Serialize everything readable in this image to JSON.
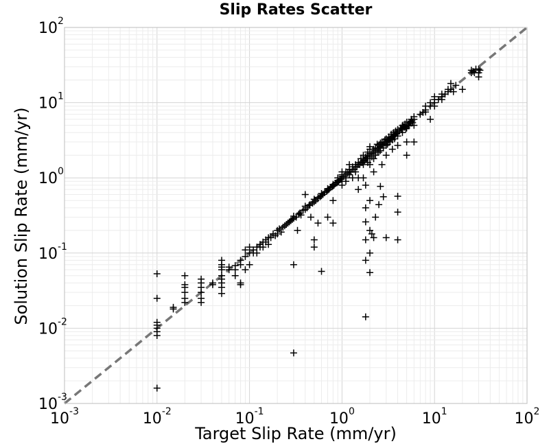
{
  "chart_data": {
    "type": "scatter",
    "title": "Slip Rates Scatter",
    "xlabel": "Target Slip Rate (mm/yr)",
    "ylabel": "Solution Slip Rate (mm/yr)",
    "xscale": "log",
    "yscale": "log",
    "xlim": [
      0.001,
      100
    ],
    "ylim": [
      0.001,
      100
    ],
    "xticks": [
      {
        "base": "10",
        "exp": "-3"
      },
      {
        "base": "10",
        "exp": "-2"
      },
      {
        "base": "10",
        "exp": "-1"
      },
      {
        "base": "10",
        "exp": "0"
      },
      {
        "base": "10",
        "exp": "1"
      },
      {
        "base": "10",
        "exp": "2"
      }
    ],
    "yticks": [
      {
        "base": "10",
        "exp": "-3"
      },
      {
        "base": "10",
        "exp": "-2"
      },
      {
        "base": "10",
        "exp": "-1"
      },
      {
        "base": "10",
        "exp": "0"
      },
      {
        "base": "10",
        "exp": "1"
      },
      {
        "base": "10",
        "exp": "2"
      }
    ],
    "grid": true,
    "marker": "+",
    "marker_color": "#000000",
    "reference_line": {
      "style": "dashed",
      "color": "#777777",
      "x": [
        0.001,
        100
      ],
      "y": [
        0.001,
        100
      ]
    },
    "series": [
      {
        "points": [
          [
            0.01,
            0.0016
          ],
          [
            0.01,
            0.008
          ],
          [
            0.01,
            0.009
          ],
          [
            0.01,
            0.01
          ],
          [
            0.01,
            0.011
          ],
          [
            0.01,
            0.012
          ],
          [
            0.01,
            0.025
          ],
          [
            0.01,
            0.053
          ],
          [
            0.015,
            0.018
          ],
          [
            0.015,
            0.019
          ],
          [
            0.02,
            0.022
          ],
          [
            0.02,
            0.025
          ],
          [
            0.02,
            0.03
          ],
          [
            0.02,
            0.035
          ],
          [
            0.02,
            0.038
          ],
          [
            0.02,
            0.05
          ],
          [
            0.03,
            0.022
          ],
          [
            0.03,
            0.025
          ],
          [
            0.03,
            0.03
          ],
          [
            0.03,
            0.035
          ],
          [
            0.03,
            0.04
          ],
          [
            0.03,
            0.045
          ],
          [
            0.04,
            0.038
          ],
          [
            0.04,
            0.04
          ],
          [
            0.05,
            0.029
          ],
          [
            0.05,
            0.035
          ],
          [
            0.05,
            0.04
          ],
          [
            0.05,
            0.045
          ],
          [
            0.05,
            0.05
          ],
          [
            0.05,
            0.06
          ],
          [
            0.05,
            0.065
          ],
          [
            0.05,
            0.07
          ],
          [
            0.05,
            0.08
          ],
          [
            0.06,
            0.06
          ],
          [
            0.06,
            0.065
          ],
          [
            0.07,
            0.05
          ],
          [
            0.07,
            0.06
          ],
          [
            0.07,
            0.068
          ],
          [
            0.08,
            0.038
          ],
          [
            0.08,
            0.04
          ],
          [
            0.08,
            0.07
          ],
          [
            0.08,
            0.08
          ],
          [
            0.09,
            0.06
          ],
          [
            0.09,
            0.09
          ],
          [
            0.09,
            0.11
          ],
          [
            0.1,
            0.07
          ],
          [
            0.1,
            0.1
          ],
          [
            0.1,
            0.12
          ],
          [
            0.11,
            0.1
          ],
          [
            0.11,
            0.11
          ],
          [
            0.12,
            0.1
          ],
          [
            0.12,
            0.12
          ],
          [
            0.13,
            0.12
          ],
          [
            0.13,
            0.13
          ],
          [
            0.14,
            0.12
          ],
          [
            0.14,
            0.14
          ],
          [
            0.15,
            0.14
          ],
          [
            0.15,
            0.15
          ],
          [
            0.16,
            0.13
          ],
          [
            0.16,
            0.16
          ],
          [
            0.17,
            0.16
          ],
          [
            0.18,
            0.18
          ],
          [
            0.19,
            0.17
          ],
          [
            0.2,
            0.2
          ],
          [
            0.2,
            0.18
          ],
          [
            0.21,
            0.21
          ],
          [
            0.22,
            0.19
          ],
          [
            0.23,
            0.22
          ],
          [
            0.24,
            0.23
          ],
          [
            0.25,
            0.24
          ],
          [
            0.26,
            0.25
          ],
          [
            0.27,
            0.26
          ],
          [
            0.28,
            0.27
          ],
          [
            0.29,
            0.28
          ],
          [
            0.3,
            0.29
          ],
          [
            0.3,
            0.31
          ],
          [
            0.3,
            0.07
          ],
          [
            0.3,
            0.0047
          ],
          [
            0.32,
            0.3
          ],
          [
            0.33,
            0.2
          ],
          [
            0.34,
            0.33
          ],
          [
            0.35,
            0.34
          ],
          [
            0.36,
            0.32
          ],
          [
            0.38,
            0.37
          ],
          [
            0.4,
            0.38
          ],
          [
            0.4,
            0.42
          ],
          [
            0.4,
            0.6
          ],
          [
            0.42,
            0.4
          ],
          [
            0.44,
            0.43
          ],
          [
            0.45,
            0.44
          ],
          [
            0.46,
            0.3
          ],
          [
            0.48,
            0.46
          ],
          [
            0.5,
            0.48
          ],
          [
            0.5,
            0.52
          ],
          [
            0.5,
            0.12
          ],
          [
            0.5,
            0.15
          ],
          [
            0.52,
            0.5
          ],
          [
            0.55,
            0.53
          ],
          [
            0.55,
            0.55
          ],
          [
            0.55,
            0.25
          ],
          [
            0.58,
            0.56
          ],
          [
            0.6,
            0.58
          ],
          [
            0.6,
            0.62
          ],
          [
            0.6,
            0.057
          ],
          [
            0.62,
            0.6
          ],
          [
            0.65,
            0.64
          ],
          [
            0.68,
            0.66
          ],
          [
            0.7,
            0.68
          ],
          [
            0.7,
            0.72
          ],
          [
            0.7,
            0.3
          ],
          [
            0.72,
            0.7
          ],
          [
            0.75,
            0.74
          ],
          [
            0.78,
            0.76
          ],
          [
            0.8,
            0.78
          ],
          [
            0.8,
            0.82
          ],
          [
            0.8,
            0.5
          ],
          [
            0.8,
            0.25
          ],
          [
            0.82,
            0.8
          ],
          [
            0.85,
            0.85
          ],
          [
            0.88,
            0.86
          ],
          [
            0.9,
            0.88
          ],
          [
            0.9,
            0.92
          ],
          [
            0.9,
            1.0
          ],
          [
            0.92,
            0.9
          ],
          [
            0.95,
            0.95
          ],
          [
            0.98,
            0.96
          ],
          [
            1.0,
            1.0
          ],
          [
            1.0,
            1.05
          ],
          [
            1.0,
            1.1
          ],
          [
            1.0,
            0.8
          ],
          [
            1.0,
            0.9
          ],
          [
            1.0,
            1.2
          ],
          [
            1.05,
            1.05
          ],
          [
            1.1,
            1.1
          ],
          [
            1.1,
            1.0
          ],
          [
            1.1,
            1.2
          ],
          [
            1.1,
            0.9
          ],
          [
            1.15,
            1.15
          ],
          [
            1.2,
            1.2
          ],
          [
            1.2,
            1.1
          ],
          [
            1.2,
            1.3
          ],
          [
            1.2,
            1.5
          ],
          [
            1.25,
            1.2
          ],
          [
            1.3,
            1.3
          ],
          [
            1.3,
            1.4
          ],
          [
            1.3,
            1.0
          ],
          [
            1.35,
            1.3
          ],
          [
            1.4,
            1.4
          ],
          [
            1.4,
            1.5
          ],
          [
            1.4,
            1.2
          ],
          [
            1.45,
            1.4
          ],
          [
            1.5,
            1.5
          ],
          [
            1.5,
            1.6
          ],
          [
            1.5,
            1.0
          ],
          [
            1.5,
            0.7
          ],
          [
            1.55,
            1.5
          ],
          [
            1.6,
            1.6
          ],
          [
            1.6,
            1.8
          ],
          [
            1.65,
            1.6
          ],
          [
            1.7,
            1.7
          ],
          [
            1.7,
            1.5
          ],
          [
            1.7,
            2.0
          ],
          [
            1.7,
            1.0
          ],
          [
            1.75,
            1.7
          ],
          [
            1.8,
            1.8
          ],
          [
            1.8,
            1.9
          ],
          [
            1.8,
            0.8
          ],
          [
            1.8,
            0.4
          ],
          [
            1.8,
            0.26
          ],
          [
            1.8,
            0.15
          ],
          [
            1.8,
            0.08
          ],
          [
            1.8,
            0.0142
          ],
          [
            1.85,
            1.8
          ],
          [
            1.9,
            1.9
          ],
          [
            1.9,
            2.0
          ],
          [
            1.9,
            1.6
          ],
          [
            1.9,
            2.2
          ],
          [
            2.0,
            2.0
          ],
          [
            2.0,
            2.1
          ],
          [
            2.0,
            1.8
          ],
          [
            2.0,
            2.4
          ],
          [
            2.0,
            1.5
          ],
          [
            2.0,
            2.6
          ],
          [
            2.0,
            0.5
          ],
          [
            2.0,
            0.2
          ],
          [
            2.0,
            0.1
          ],
          [
            2.0,
            0.055
          ],
          [
            2.1,
            2.1
          ],
          [
            2.1,
            1.9
          ],
          [
            2.1,
            0.18
          ],
          [
            2.2,
            2.2
          ],
          [
            2.2,
            2.4
          ],
          [
            2.2,
            1.8
          ],
          [
            2.2,
            1.2
          ],
          [
            2.2,
            0.16
          ],
          [
            2.3,
            2.3
          ],
          [
            2.3,
            2.5
          ],
          [
            2.3,
            2.0
          ],
          [
            2.3,
            0.3
          ],
          [
            2.4,
            2.4
          ],
          [
            2.4,
            2.2
          ],
          [
            2.4,
            2.8
          ],
          [
            2.5,
            2.5
          ],
          [
            2.5,
            2.7
          ],
          [
            2.5,
            2.2
          ],
          [
            2.5,
            0.44
          ],
          [
            2.6,
            2.6
          ],
          [
            2.6,
            2.9
          ],
          [
            2.6,
            2.3
          ],
          [
            2.6,
            0.77
          ],
          [
            2.7,
            2.7
          ],
          [
            2.7,
            3.0
          ],
          [
            2.7,
            1.5
          ],
          [
            2.8,
            2.8
          ],
          [
            2.8,
            2.5
          ],
          [
            2.8,
            0.56
          ],
          [
            2.9,
            2.9
          ],
          [
            2.9,
            3.2
          ],
          [
            3.0,
            3.0
          ],
          [
            3.0,
            3.3
          ],
          [
            3.0,
            2.7
          ],
          [
            3.0,
            2.0
          ],
          [
            3.0,
            0.16
          ],
          [
            3.1,
            3.1
          ],
          [
            3.1,
            2.8
          ],
          [
            3.2,
            3.2
          ],
          [
            3.2,
            3.5
          ],
          [
            3.3,
            3.3
          ],
          [
            3.3,
            3.0
          ],
          [
            3.4,
            3.4
          ],
          [
            3.4,
            3.8
          ],
          [
            3.5,
            3.5
          ],
          [
            3.5,
            3.2
          ],
          [
            3.5,
            2.4
          ],
          [
            3.6,
            3.6
          ],
          [
            3.6,
            4.0
          ],
          [
            3.7,
            3.7
          ],
          [
            3.7,
            3.3
          ],
          [
            3.8,
            3.8
          ],
          [
            3.8,
            4.2
          ],
          [
            3.9,
            3.9
          ],
          [
            4.0,
            4.0
          ],
          [
            4.0,
            4.4
          ],
          [
            4.0,
            3.6
          ],
          [
            4.0,
            2.7
          ],
          [
            4.0,
            0.57
          ],
          [
            4.0,
            0.35
          ],
          [
            4.0,
            0.15
          ],
          [
            4.2,
            4.2
          ],
          [
            4.3,
            4.6
          ],
          [
            4.4,
            4.4
          ],
          [
            4.5,
            4.5
          ],
          [
            4.5,
            5.0
          ],
          [
            4.5,
            4.0
          ],
          [
            4.6,
            4.8
          ],
          [
            4.7,
            4.7
          ],
          [
            4.8,
            4.8
          ],
          [
            4.8,
            5.2
          ],
          [
            4.9,
            4.5
          ],
          [
            5.0,
            5.0
          ],
          [
            5.0,
            5.5
          ],
          [
            5.0,
            4.6
          ],
          [
            5.0,
            3.0
          ],
          [
            5.0,
            2.0
          ],
          [
            5.2,
            5.2
          ],
          [
            5.3,
            4.9
          ],
          [
            5.4,
            5.4
          ],
          [
            5.5,
            5.5
          ],
          [
            5.6,
            6.0
          ],
          [
            5.7,
            5.7
          ],
          [
            5.8,
            5.4
          ],
          [
            6.0,
            6.0
          ],
          [
            6.0,
            6.5
          ],
          [
            6.0,
            5.0
          ],
          [
            6.0,
            3.0
          ],
          [
            7.0,
            7.0
          ],
          [
            7.5,
            7.4
          ],
          [
            8.0,
            8.0
          ],
          [
            8.0,
            9.0
          ],
          [
            8.0,
            7.5
          ],
          [
            9.0,
            9.0
          ],
          [
            9.0,
            10.0
          ],
          [
            9.0,
            6.0
          ],
          [
            10.0,
            10.0
          ],
          [
            10.0,
            11.0
          ],
          [
            10.0,
            9.0
          ],
          [
            10.0,
            12.0
          ],
          [
            11.0,
            11.0
          ],
          [
            12.0,
            12.0
          ],
          [
            12.0,
            13.0
          ],
          [
            12.0,
            11.0
          ],
          [
            13.0,
            13.0
          ],
          [
            14.0,
            14.0
          ],
          [
            14.0,
            15.0
          ],
          [
            15.0,
            15.0
          ],
          [
            15.0,
            18.0
          ],
          [
            16.0,
            14.0
          ],
          [
            17.0,
            17.0
          ],
          [
            20.0,
            15.0
          ],
          [
            25.0,
            25.0
          ],
          [
            25.0,
            27.0
          ],
          [
            26.0,
            26.0
          ],
          [
            27.0,
            25.0
          ],
          [
            28.0,
            28.0
          ],
          [
            30.0,
            25.0
          ],
          [
            30.0,
            28.0
          ],
          [
            30.0,
            22.0
          ],
          [
            31.0,
            27.0
          ]
        ]
      }
    ]
  }
}
